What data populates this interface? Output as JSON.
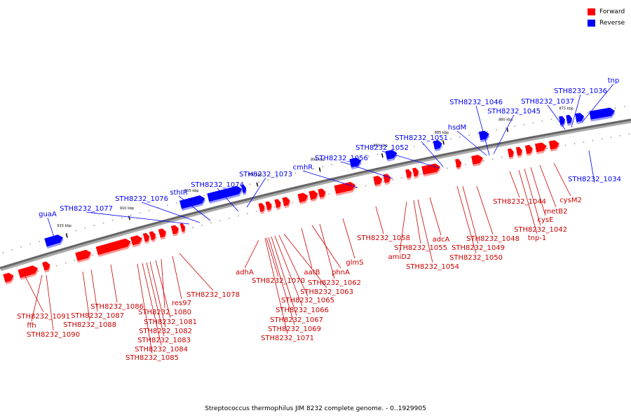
{
  "legend": {
    "forward": {
      "label": "Forward",
      "color": "#ff0000"
    },
    "reverse": {
      "label": "Reverse",
      "color": "#0000ff"
    }
  },
  "caption": "Streptococcus thermophilus JIM 8232 complete genome. - 0..1929905",
  "ticks": [
    "915 kbp",
    "910 kbp",
    "905 kbp",
    "900 kbp",
    "895 kbp",
    "890 kbp",
    "885 kbp",
    "880 kbp",
    "875 kbp"
  ],
  "genes": {
    "reverse": [
      "guaA",
      "STH8232_1077",
      "STH8232_1076",
      "sthIR",
      "STH8232_1074",
      "STH8232_1073",
      "cmhR",
      "STH8232_1056",
      "STH8232_1052",
      "STH8232_1051",
      "hsdM",
      "STH8232_1046",
      "STH8232_1045",
      "STH8232_1037",
      "STH8232_1036",
      "tnp",
      "STH8232_1034"
    ],
    "forward": [
      "STH8232_1091",
      "ffh",
      "STH8232_1090",
      "STH8232_1086",
      "STH8232_1087",
      "STH8232_1088",
      "STH8232_1080",
      "res97",
      "STH8232_1078",
      "STH8232_1081",
      "STH8232_1082",
      "STH8232_1083",
      "STH8232_1084",
      "STH8232_1085",
      "adhA",
      "STH8232_1070",
      "aatB",
      "phnA",
      "glmS",
      "STH8232_1062",
      "STH8232_1063",
      "STH8232_1065",
      "STH8232_1066",
      "STH8232_1067",
      "STH8232_1069",
      "STH8232_1071",
      "STH8232_1058",
      "adcA",
      "STH8232_1055",
      "amiD2",
      "STH8232_1054",
      "STH8232_1048",
      "STH8232_1049",
      "STH8232_1050",
      "STH8232_1044",
      "cysM2",
      "metB2",
      "cysE",
      "STH8232_1042",
      "tnp-1"
    ]
  }
}
